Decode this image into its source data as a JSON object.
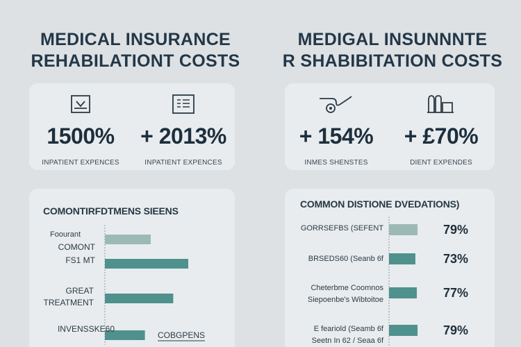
{
  "left": {
    "title_line1": "MEDICAL INSURANCE",
    "title_line2": "REHABILATIONT COSTS",
    "stats": [
      {
        "value": "1500%",
        "label": "INPATIENT EXPENCES",
        "icon": "tray-download-icon"
      },
      {
        "value": "+ 2013%",
        "label": "INPATIENT EXPENCES",
        "icon": "document-list-icon"
      }
    ]
  },
  "right": {
    "title_line1": "MEDIGAL INSUNNNTE",
    "title_line2": "R SHABIBITATION COSTS",
    "stats": [
      {
        "value": "+ 154%",
        "label": "INMES SHENSTES",
        "icon": "stethoscope-icon"
      },
      {
        "value": "+ £70%",
        "label": "DIENT EXPENDES",
        "icon": "rehab-equipment-icon"
      }
    ]
  },
  "colors": {
    "bar": "#4f918d",
    "bar_light": "#9cbab5",
    "axis": "#8b9aa3"
  },
  "chart_data": [
    {
      "type": "bar",
      "orientation": "horizontal",
      "title": "COMONTIRFDTMENS SIEENS",
      "categories": [
        "Foourant",
        "COMONT FS1 MT",
        "GREAT TREATMENT",
        "INVENSSKE60"
      ],
      "values": [
        55,
        100,
        82,
        48
      ],
      "highlight": [
        true,
        false,
        false,
        false
      ],
      "annotations": [
        "",
        "",
        "",
        "COBGPENS"
      ],
      "xlim": [
        0,
        100
      ]
    },
    {
      "type": "bar",
      "orientation": "horizontal",
      "title": "COMMON DISTIONE DVEDATIONS)",
      "categories": [
        "GORRSEFBS (SEFENT",
        "BRSEDS60 (Seanb 6f",
        "Cheterbme Coomnos Siepoenbe's Wibtoitoe",
        "E feariold (Seamb 6f Seetn In 62 / Seaa 6f"
      ],
      "values": [
        79,
        73,
        77,
        79
      ],
      "value_labels": [
        "79%",
        "73%",
        "77%",
        "79%"
      ],
      "highlight": [
        true,
        false,
        false,
        false
      ],
      "xlim": [
        0,
        100
      ]
    }
  ]
}
